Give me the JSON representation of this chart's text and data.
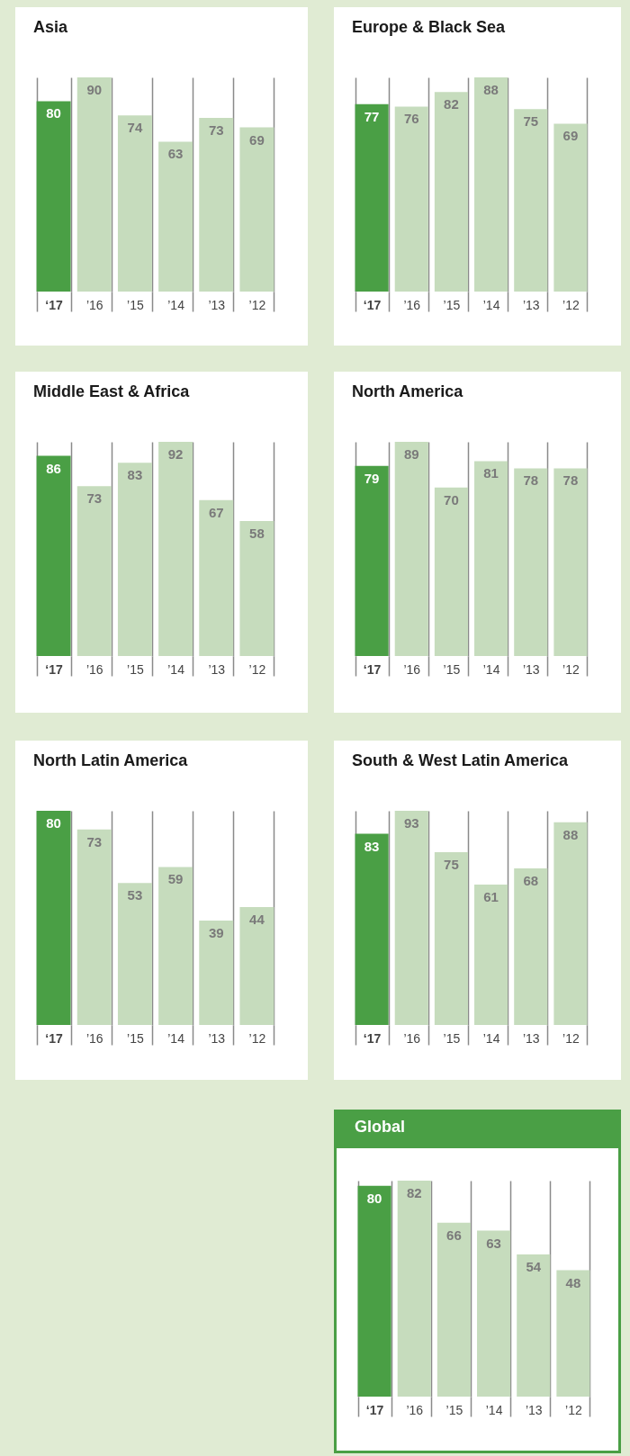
{
  "chart_data": [
    {
      "type": "bar",
      "title": "Asia",
      "categories": [
        "‘17",
        "’16",
        "’15",
        "’14",
        "’13",
        "’12"
      ],
      "values": [
        80,
        90,
        74,
        63,
        73,
        69
      ],
      "colors": [
        "#4a9f45",
        "#c6dcbd",
        "#c6dcbd",
        "#c6dcbd",
        "#c6dcbd",
        "#c6dcbd"
      ],
      "data_labels": true,
      "grid": "x"
    },
    {
      "type": "bar",
      "title": "Europe & Black Sea",
      "categories": [
        "‘17",
        "’16",
        "’15",
        "’14",
        "’13",
        "’12"
      ],
      "values": [
        77,
        76,
        82,
        88,
        75,
        69
      ],
      "colors": [
        "#4a9f45",
        "#c6dcbd",
        "#c6dcbd",
        "#c6dcbd",
        "#c6dcbd",
        "#c6dcbd"
      ],
      "data_labels": true,
      "grid": "x"
    },
    {
      "type": "bar",
      "title": "Middle East & Africa",
      "categories": [
        "‘17",
        "’16",
        "’15",
        "’14",
        "’13",
        "’12"
      ],
      "values": [
        86,
        73,
        83,
        92,
        67,
        58
      ],
      "colors": [
        "#4a9f45",
        "#c6dcbd",
        "#c6dcbd",
        "#c6dcbd",
        "#c6dcbd",
        "#c6dcbd"
      ],
      "data_labels": true,
      "grid": "x"
    },
    {
      "type": "bar",
      "title": "North America",
      "categories": [
        "‘17",
        "’16",
        "’15",
        "’14",
        "’13",
        "’12"
      ],
      "values": [
        79,
        89,
        70,
        81,
        78,
        78
      ],
      "colors": [
        "#4a9f45",
        "#c6dcbd",
        "#c6dcbd",
        "#c6dcbd",
        "#c6dcbd",
        "#c6dcbd"
      ],
      "data_labels": true,
      "grid": "x"
    },
    {
      "type": "bar",
      "title": "North Latin America",
      "categories": [
        "‘17",
        "’16",
        "’15",
        "’14",
        "’13",
        "’12"
      ],
      "values": [
        80,
        73,
        53,
        59,
        39,
        44
      ],
      "colors": [
        "#4a9f45",
        "#c6dcbd",
        "#c6dcbd",
        "#c6dcbd",
        "#c6dcbd",
        "#c6dcbd"
      ],
      "data_labels": true,
      "grid": "x"
    },
    {
      "type": "bar",
      "title": "South & West Latin America",
      "categories": [
        "‘17",
        "’16",
        "’15",
        "’14",
        "’13",
        "’12"
      ],
      "values": [
        83,
        93,
        75,
        61,
        68,
        88
      ],
      "colors": [
        "#4a9f45",
        "#c6dcbd",
        "#c6dcbd",
        "#c6dcbd",
        "#c6dcbd",
        "#c6dcbd"
      ],
      "data_labels": true,
      "grid": "x"
    },
    {
      "type": "bar",
      "title": "Global",
      "categories": [
        "‘17",
        "’16",
        "’15",
        "’14",
        "’13",
        "’12"
      ],
      "values": [
        80,
        82,
        66,
        63,
        54,
        48
      ],
      "colors": [
        "#4a9f45",
        "#c6dcbd",
        "#c6dcbd",
        "#c6dcbd",
        "#c6dcbd",
        "#c6dcbd"
      ],
      "data_labels": true,
      "grid": "x"
    }
  ]
}
